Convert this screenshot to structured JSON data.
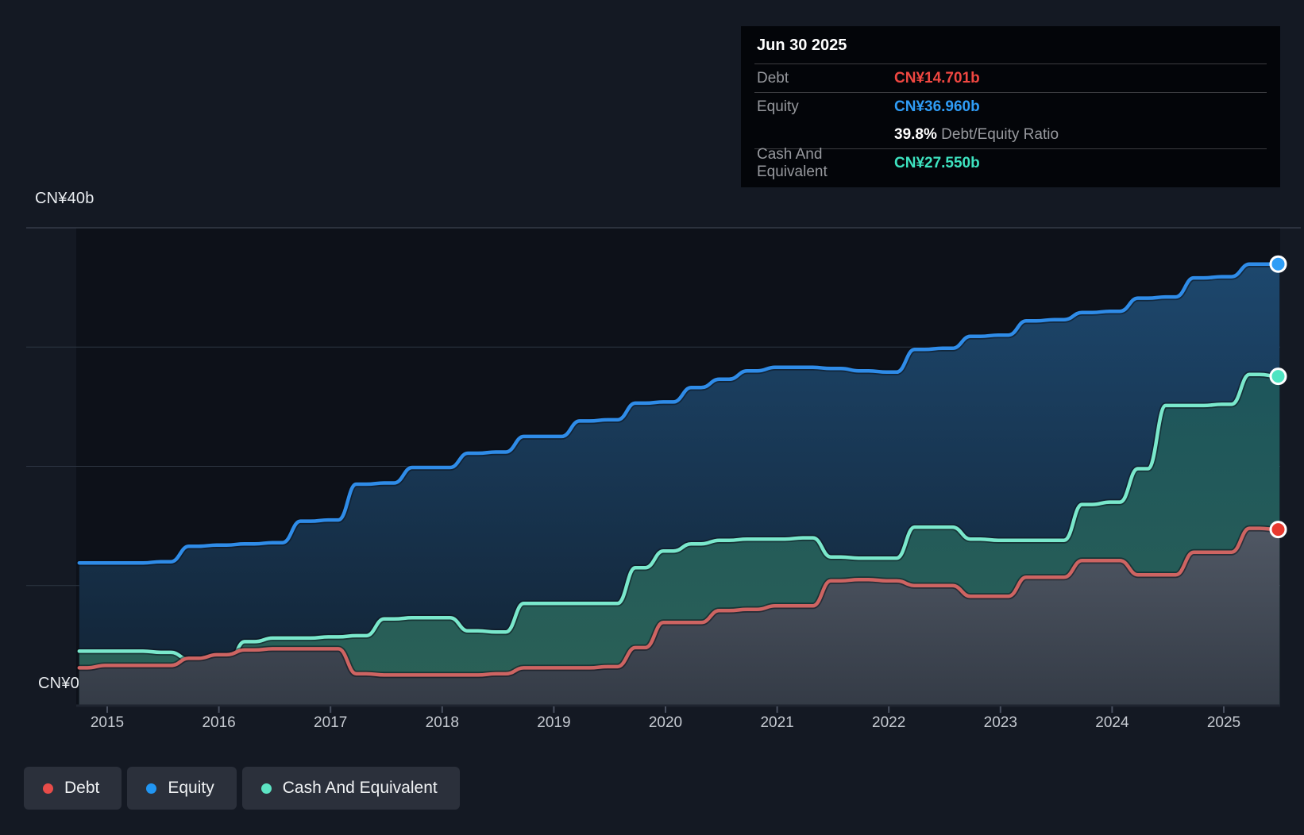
{
  "axes": {
    "y_top": "CN¥40b",
    "y_zero": "CN¥0",
    "years": [
      "2015",
      "2016",
      "2017",
      "2018",
      "2019",
      "2020",
      "2021",
      "2022",
      "2023",
      "2024",
      "2025"
    ]
  },
  "tooltip": {
    "date": "Jun 30 2025",
    "debt_label": "Debt",
    "debt_value": "CN¥14.701b",
    "debt_color": "#ef4741",
    "equity_label": "Equity",
    "equity_value": "CN¥36.960b",
    "equity_color": "#2f9cf5",
    "ratio_value": "39.8%",
    "ratio_label": "Debt/Equity Ratio",
    "cash_label": "Cash And Equivalent",
    "cash_value": "CN¥27.550b",
    "cash_color": "#3de2bf"
  },
  "legend": [
    {
      "label": "Debt",
      "color": "#e84c49"
    },
    {
      "label": "Equity",
      "color": "#2196f3"
    },
    {
      "label": "Cash And Equivalent",
      "color": "#5de4c4"
    }
  ],
  "chart_data": {
    "type": "area",
    "title": "Debt to Equity History and Analysis",
    "unit": "CN¥ billions",
    "xlim": [
      2014.72,
      2025.55
    ],
    "ylim": [
      0,
      40
    ],
    "y_gridlines": [
      10,
      20,
      30,
      40
    ],
    "grid": true,
    "legend_position": "bottom-left",
    "x": [
      2014.75,
      2015,
      2015.25,
      2015.5,
      2015.75,
      2016,
      2016.25,
      2016.5,
      2016.75,
      2017,
      2017.25,
      2017.5,
      2017.75,
      2018,
      2018.25,
      2018.5,
      2018.75,
      2019,
      2019.25,
      2019.5,
      2019.75,
      2020,
      2020.25,
      2020.5,
      2020.75,
      2021,
      2021.25,
      2021.5,
      2021.75,
      2022,
      2022.25,
      2022.5,
      2022.75,
      2023,
      2023.25,
      2023.5,
      2023.75,
      2024,
      2024.25,
      2024.5,
      2024.75,
      2025,
      2025.25,
      2025.5
    ],
    "series": [
      {
        "name": "Equity",
        "color": "#2f8ce8",
        "marker_color": "#2e9df6",
        "values": [
          11.9,
          11.9,
          11.9,
          12.0,
          13.3,
          13.4,
          13.5,
          13.6,
          15.4,
          15.5,
          18.5,
          18.6,
          19.9,
          19.9,
          21.1,
          21.2,
          22.5,
          22.5,
          23.8,
          23.9,
          25.3,
          25.4,
          26.6,
          27.3,
          28.0,
          28.3,
          28.3,
          28.2,
          28.0,
          27.9,
          29.8,
          29.9,
          30.9,
          31.0,
          32.2,
          32.3,
          32.9,
          33.0,
          34.1,
          34.2,
          35.8,
          35.9,
          36.96,
          36.96
        ]
      },
      {
        "name": "Cash And Equivalent",
        "color": "#7ae8cc",
        "marker_color": "#4fe4c2",
        "values": [
          4.5,
          4.5,
          4.5,
          4.4,
          3.8,
          3.2,
          5.3,
          5.6,
          5.6,
          5.7,
          5.8,
          7.2,
          7.3,
          7.3,
          6.2,
          6.1,
          8.5,
          8.5,
          8.5,
          8.5,
          11.5,
          12.9,
          13.5,
          13.8,
          13.9,
          13.9,
          14.0,
          12.4,
          12.3,
          12.3,
          14.9,
          14.9,
          13.9,
          13.8,
          13.8,
          13.8,
          16.8,
          17.0,
          19.8,
          25.1,
          25.1,
          25.2,
          27.7,
          27.55
        ]
      },
      {
        "name": "Debt",
        "color": "#ce6462",
        "marker_color": "#e83a2f",
        "values": [
          3.1,
          3.3,
          3.3,
          3.3,
          3.9,
          4.2,
          4.6,
          4.7,
          4.7,
          4.7,
          2.6,
          2.5,
          2.5,
          2.5,
          2.5,
          2.6,
          3.1,
          3.1,
          3.1,
          3.2,
          4.8,
          6.9,
          6.9,
          7.9,
          8.0,
          8.3,
          8.3,
          10.4,
          10.5,
          10.4,
          10.0,
          10.0,
          9.1,
          9.1,
          10.7,
          10.7,
          12.1,
          12.1,
          10.9,
          10.9,
          12.8,
          12.8,
          14.8,
          14.701
        ]
      }
    ]
  }
}
